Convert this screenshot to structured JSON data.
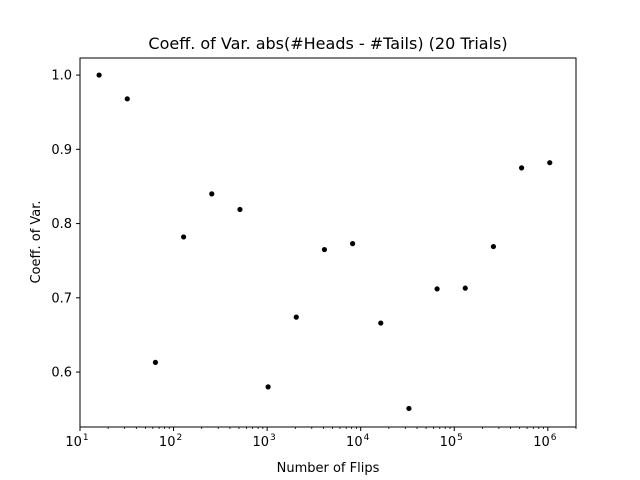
{
  "chart_data": {
    "type": "scatter",
    "title": "Coeff. of Var. abs(#Heads - #Tails) (20 Trials)",
    "xlabel": "Number of Flips",
    "ylabel": "Coeff. of Var.",
    "x_scale": "log",
    "xlim": [
      10,
      2000000
    ],
    "ylim": [
      0.526,
      1.023
    ],
    "grid": false,
    "marker_color": "#000000",
    "x_ticks": [
      {
        "base": "10",
        "exp": "1",
        "value": 10
      },
      {
        "base": "10",
        "exp": "2",
        "value": 100
      },
      {
        "base": "10",
        "exp": "3",
        "value": 1000
      },
      {
        "base": "10",
        "exp": "4",
        "value": 10000
      },
      {
        "base": "10",
        "exp": "5",
        "value": 100000
      },
      {
        "base": "10",
        "exp": "6",
        "value": 1000000
      }
    ],
    "y_ticks": [
      {
        "label": "0.6",
        "value": 0.6
      },
      {
        "label": "0.7",
        "value": 0.7
      },
      {
        "label": "0.8",
        "value": 0.8
      },
      {
        "label": "0.9",
        "value": 0.9
      },
      {
        "label": "1.0",
        "value": 1.0
      }
    ],
    "points": [
      {
        "x": 16,
        "y": 1.0
      },
      {
        "x": 32,
        "y": 0.968
      },
      {
        "x": 64,
        "y": 0.613
      },
      {
        "x": 128,
        "y": 0.782
      },
      {
        "x": 256,
        "y": 0.84
      },
      {
        "x": 512,
        "y": 0.819
      },
      {
        "x": 1024,
        "y": 0.58
      },
      {
        "x": 2048,
        "y": 0.674
      },
      {
        "x": 4096,
        "y": 0.765
      },
      {
        "x": 8192,
        "y": 0.773
      },
      {
        "x": 16384,
        "y": 0.666
      },
      {
        "x": 32768,
        "y": 0.551
      },
      {
        "x": 65536,
        "y": 0.712
      },
      {
        "x": 131072,
        "y": 0.713
      },
      {
        "x": 262144,
        "y": 0.769
      },
      {
        "x": 524288,
        "y": 0.875
      },
      {
        "x": 1048576,
        "y": 0.882
      }
    ]
  }
}
